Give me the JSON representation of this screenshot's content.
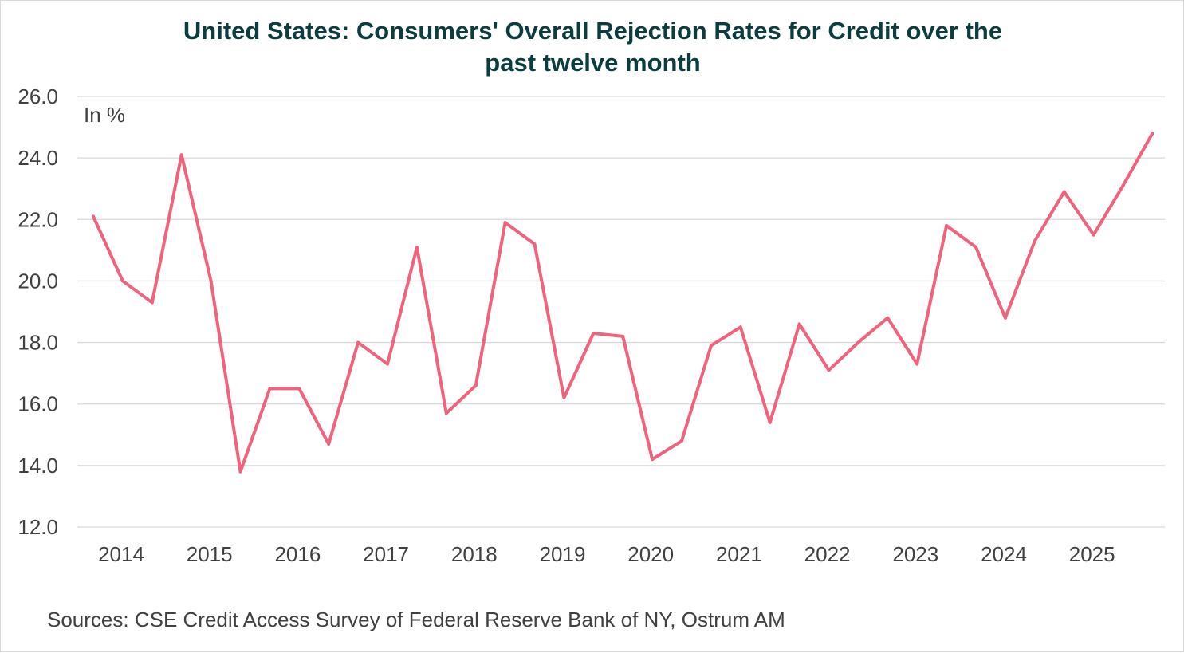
{
  "chart_data": {
    "type": "line",
    "title": [
      "United States: Consumers' Overall Rejection Rates for Credit over the",
      "past twelve month"
    ],
    "unit_label": "In %",
    "source": "Sources: CSE Credit Access Survey of Federal Reserve Bank of NY, Ostrum AM",
    "xlabel": "",
    "ylabel": "",
    "ylim": [
      12,
      26
    ],
    "yticks": [
      "12.0",
      "14.0",
      "16.0",
      "18.0",
      "20.0",
      "22.0",
      "24.0",
      "26.0"
    ],
    "xticks": [
      "2014",
      "2015",
      "2016",
      "2017",
      "2018",
      "2019",
      "2020",
      "2021",
      "2022",
      "2023",
      "2024",
      "2025"
    ],
    "grid": true,
    "legend": "none",
    "line_color": "#f0637d",
    "x": [
      "2013-10",
      "2014-02",
      "2014-06",
      "2014-10",
      "2015-02",
      "2015-06",
      "2015-10",
      "2016-02",
      "2016-06",
      "2016-10",
      "2017-02",
      "2017-06",
      "2017-10",
      "2018-02",
      "2018-06",
      "2018-10",
      "2019-02",
      "2019-06",
      "2019-10",
      "2020-02",
      "2020-06",
      "2020-10",
      "2021-02",
      "2021-06",
      "2021-10",
      "2022-02",
      "2022-06",
      "2022-10",
      "2023-02",
      "2023-06",
      "2023-10",
      "2024-02",
      "2024-06",
      "2024-10",
      "2025-02",
      "2025-06",
      "2025-10"
    ],
    "values": [
      22.1,
      20.0,
      19.3,
      24.1,
      20.0,
      13.8,
      16.5,
      16.5,
      14.7,
      18.0,
      17.3,
      21.1,
      15.7,
      16.6,
      21.9,
      21.2,
      16.2,
      18.3,
      18.2,
      14.2,
      14.8,
      17.9,
      18.5,
      15.4,
      18.6,
      17.1,
      18.0,
      18.8,
      17.3,
      21.8,
      21.1,
      18.8,
      21.3,
      22.9,
      21.5,
      23.1,
      24.8
    ]
  }
}
